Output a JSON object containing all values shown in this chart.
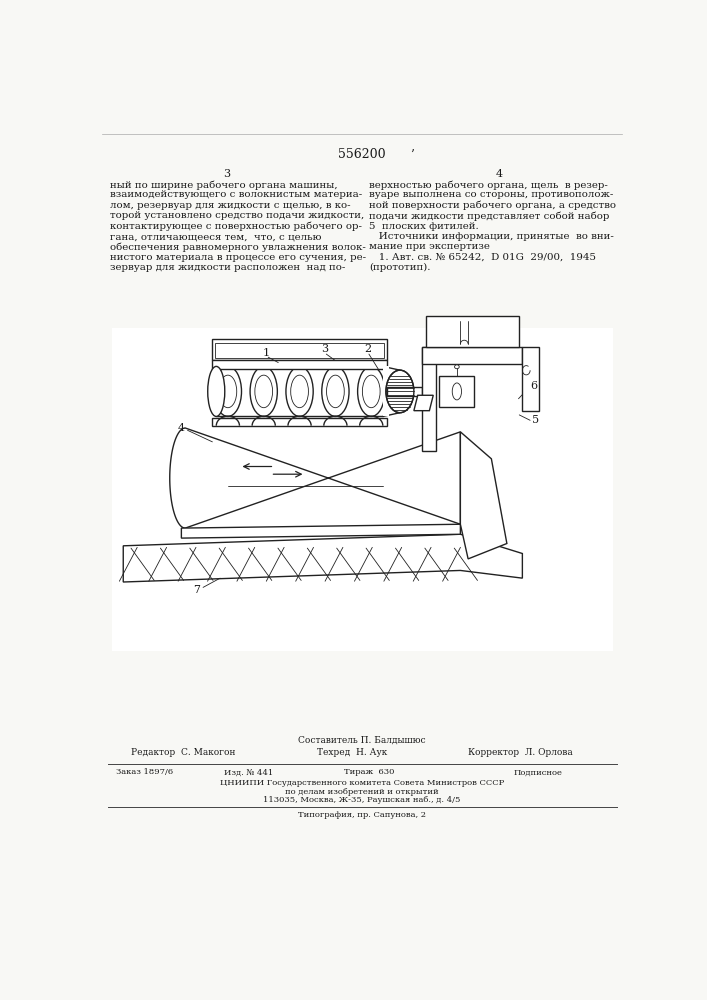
{
  "patent_number": "556200",
  "page_left": "3",
  "page_right": "4",
  "col_mark": "’",
  "text_left": "ный по ширине рабочего органа машины,\nвзаимодействующего с волокнистым материа-\nлом, резервуар для жидкости с щелью, в ко-\nторой установлено средство подачи жидкости,\nконтактирующее с поверхностью рабочего ор-\nгана, отличающееся тем,  что, с целью\nобеспечения равномерного увлажнения волок-\nнистого материала в процессе его сучения, ре-\nзервуар для жидкости расположен  над по-",
  "text_right_col1": "верхностью рабочего органа, щель  в резер-\nвуаре выполнена со стороны, противополож-\nной поверхности рабочего органа, а средство\nподачи жидкости представляет собой набор",
  "text_right_line5": "5  плоских фитилей.",
  "text_right_col2": "   Источники информации, принятые  во вни-\nмание при экспертизе\n   1. Авт. св. № 65242,  D 01G  29/00,  1945\n(прототип).",
  "composer_label": "Составитель П. Балдышюс",
  "editor_label": "Редактор  С. Макогон",
  "tech_label": "Техред  Н. Аук",
  "corrector_label": "Корректор  Л. Орлова",
  "order_label": "Заказ 1897/6",
  "izd_label": "Изд. № 441",
  "tiraz_label": "Тираж  630",
  "podp_label": "Подписное",
  "cniip_line1": "ЦНИИПИ Государственного комитета Совета Министров СССР",
  "cniip_line2": "по делам изобретений и открытий",
  "cniip_line3": "113035, Москва, Ж-35, Раушская наб., д. 4/5",
  "tipograf": "Типография, пр. Сапунова, 2",
  "bg_color": "#f8f8f5",
  "text_color": "#1a1a1a",
  "line_color": "#222222",
  "lw_main": 1.0,
  "lw_thin": 0.6
}
